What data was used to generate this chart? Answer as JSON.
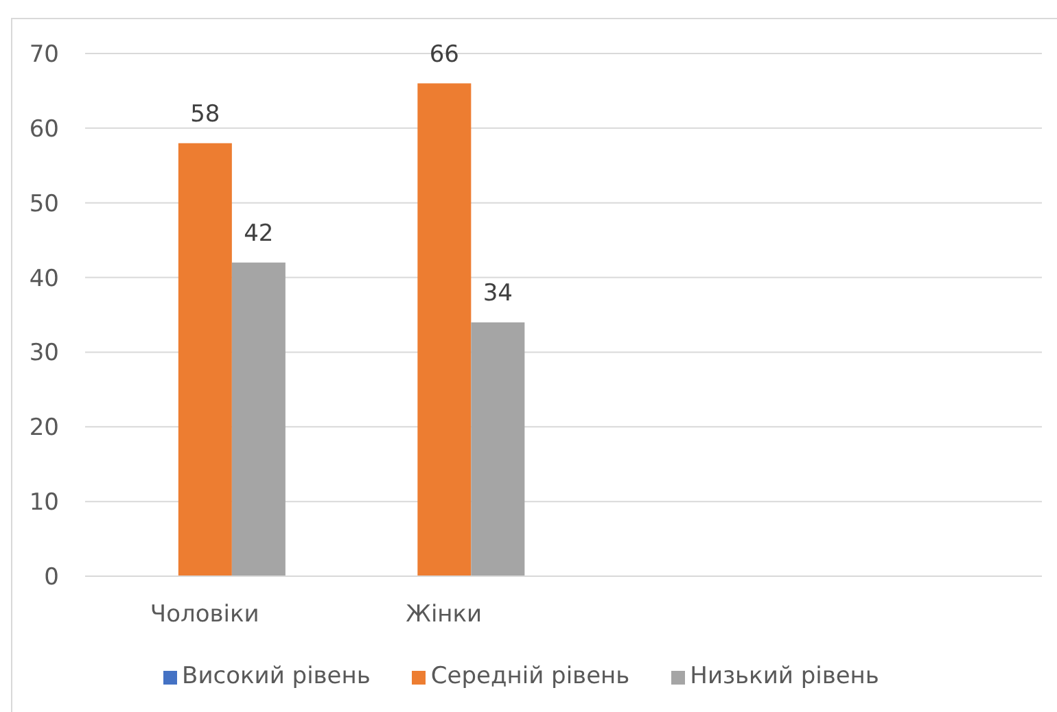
{
  "chart_data": {
    "type": "bar",
    "categories": [
      "Чоловіки",
      "Жінки",
      null,
      null
    ],
    "series": [
      {
        "name": "Високий рівень",
        "color": "#4472c4",
        "values": [
          null,
          null,
          null,
          null
        ]
      },
      {
        "name": "Середній рівень",
        "color": "#ed7d31",
        "values": [
          58,
          66,
          null,
          null
        ]
      },
      {
        "name": "Низький рівень",
        "color": "#a5a5a5",
        "values": [
          42,
          34,
          null,
          null
        ]
      }
    ],
    "ylim": [
      0,
      70
    ],
    "yticks": [
      0,
      10,
      20,
      30,
      40,
      50,
      60,
      70
    ],
    "grid": "y",
    "legend": "bottom",
    "data_labels": true
  }
}
